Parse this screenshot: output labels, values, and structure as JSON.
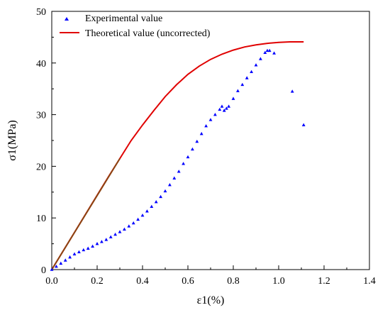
{
  "chart_data": {
    "type": "line",
    "title": "",
    "xlabel": "ε1(%)",
    "ylabel": "σ1(MPa)",
    "xlim": [
      0,
      1.4
    ],
    "ylim": [
      0,
      50
    ],
    "x_ticks": [
      0.0,
      0.2,
      0.4,
      0.6,
      0.8,
      1.0,
      1.2,
      1.4
    ],
    "x_tick_labels": [
      "0.0",
      "0.2",
      "0.4",
      "0.6",
      "0.8",
      "1.0",
      "1.2",
      "1.4"
    ],
    "y_ticks": [
      0,
      10,
      20,
      30,
      40,
      50
    ],
    "y_tick_labels": [
      "0",
      "10",
      "20",
      "30",
      "40",
      "50"
    ],
    "grid": false,
    "legend": "top-left",
    "series": [
      {
        "name": "Experimental value",
        "type": "scatter",
        "marker": "triangle",
        "color": "#0000ff",
        "x": [
          0.0,
          0.02,
          0.04,
          0.06,
          0.08,
          0.1,
          0.12,
          0.14,
          0.16,
          0.18,
          0.2,
          0.22,
          0.24,
          0.26,
          0.28,
          0.3,
          0.32,
          0.34,
          0.36,
          0.38,
          0.4,
          0.42,
          0.44,
          0.46,
          0.48,
          0.5,
          0.52,
          0.54,
          0.56,
          0.58,
          0.6,
          0.62,
          0.64,
          0.66,
          0.68,
          0.7,
          0.72,
          0.74,
          0.75,
          0.76,
          0.77,
          0.78,
          0.8,
          0.82,
          0.84,
          0.86,
          0.88,
          0.9,
          0.92,
          0.94,
          0.95,
          0.96,
          0.98,
          1.06,
          1.11
        ],
        "y": [
          0.0,
          0.6,
          1.2,
          1.8,
          2.4,
          3.0,
          3.4,
          3.8,
          4.1,
          4.5,
          5.0,
          5.4,
          5.8,
          6.3,
          6.8,
          7.3,
          7.8,
          8.4,
          9.0,
          9.7,
          10.5,
          11.3,
          12.2,
          13.1,
          14.1,
          15.2,
          16.4,
          17.7,
          19.0,
          20.5,
          21.8,
          23.3,
          24.8,
          26.3,
          27.8,
          29.0,
          30.0,
          31.0,
          31.6,
          30.8,
          31.2,
          31.6,
          33.1,
          34.6,
          35.8,
          37.1,
          38.3,
          39.6,
          40.8,
          42.0,
          42.4,
          42.4,
          41.9,
          34.5,
          28.0
        ]
      },
      {
        "name": "Theoretical value (uncorrected)",
        "type": "line",
        "color": "#e00000",
        "x": [
          0.0,
          0.05,
          0.1,
          0.15,
          0.2,
          0.25,
          0.3,
          0.35,
          0.4,
          0.45,
          0.5,
          0.55,
          0.6,
          0.65,
          0.7,
          0.75,
          0.8,
          0.85,
          0.9,
          0.95,
          1.0,
          1.05,
          1.11
        ],
        "y": [
          0.0,
          3.6,
          7.2,
          10.8,
          14.4,
          18.0,
          21.5,
          25.0,
          28.0,
          30.8,
          33.5,
          35.8,
          37.8,
          39.4,
          40.7,
          41.7,
          42.5,
          43.1,
          43.5,
          43.8,
          44.0,
          44.1,
          44.1
        ]
      }
    ],
    "overlay_segment": {
      "color": "#8b4513",
      "x": [
        0.0,
        0.3
      ],
      "y": [
        0.0,
        21.5
      ]
    }
  }
}
